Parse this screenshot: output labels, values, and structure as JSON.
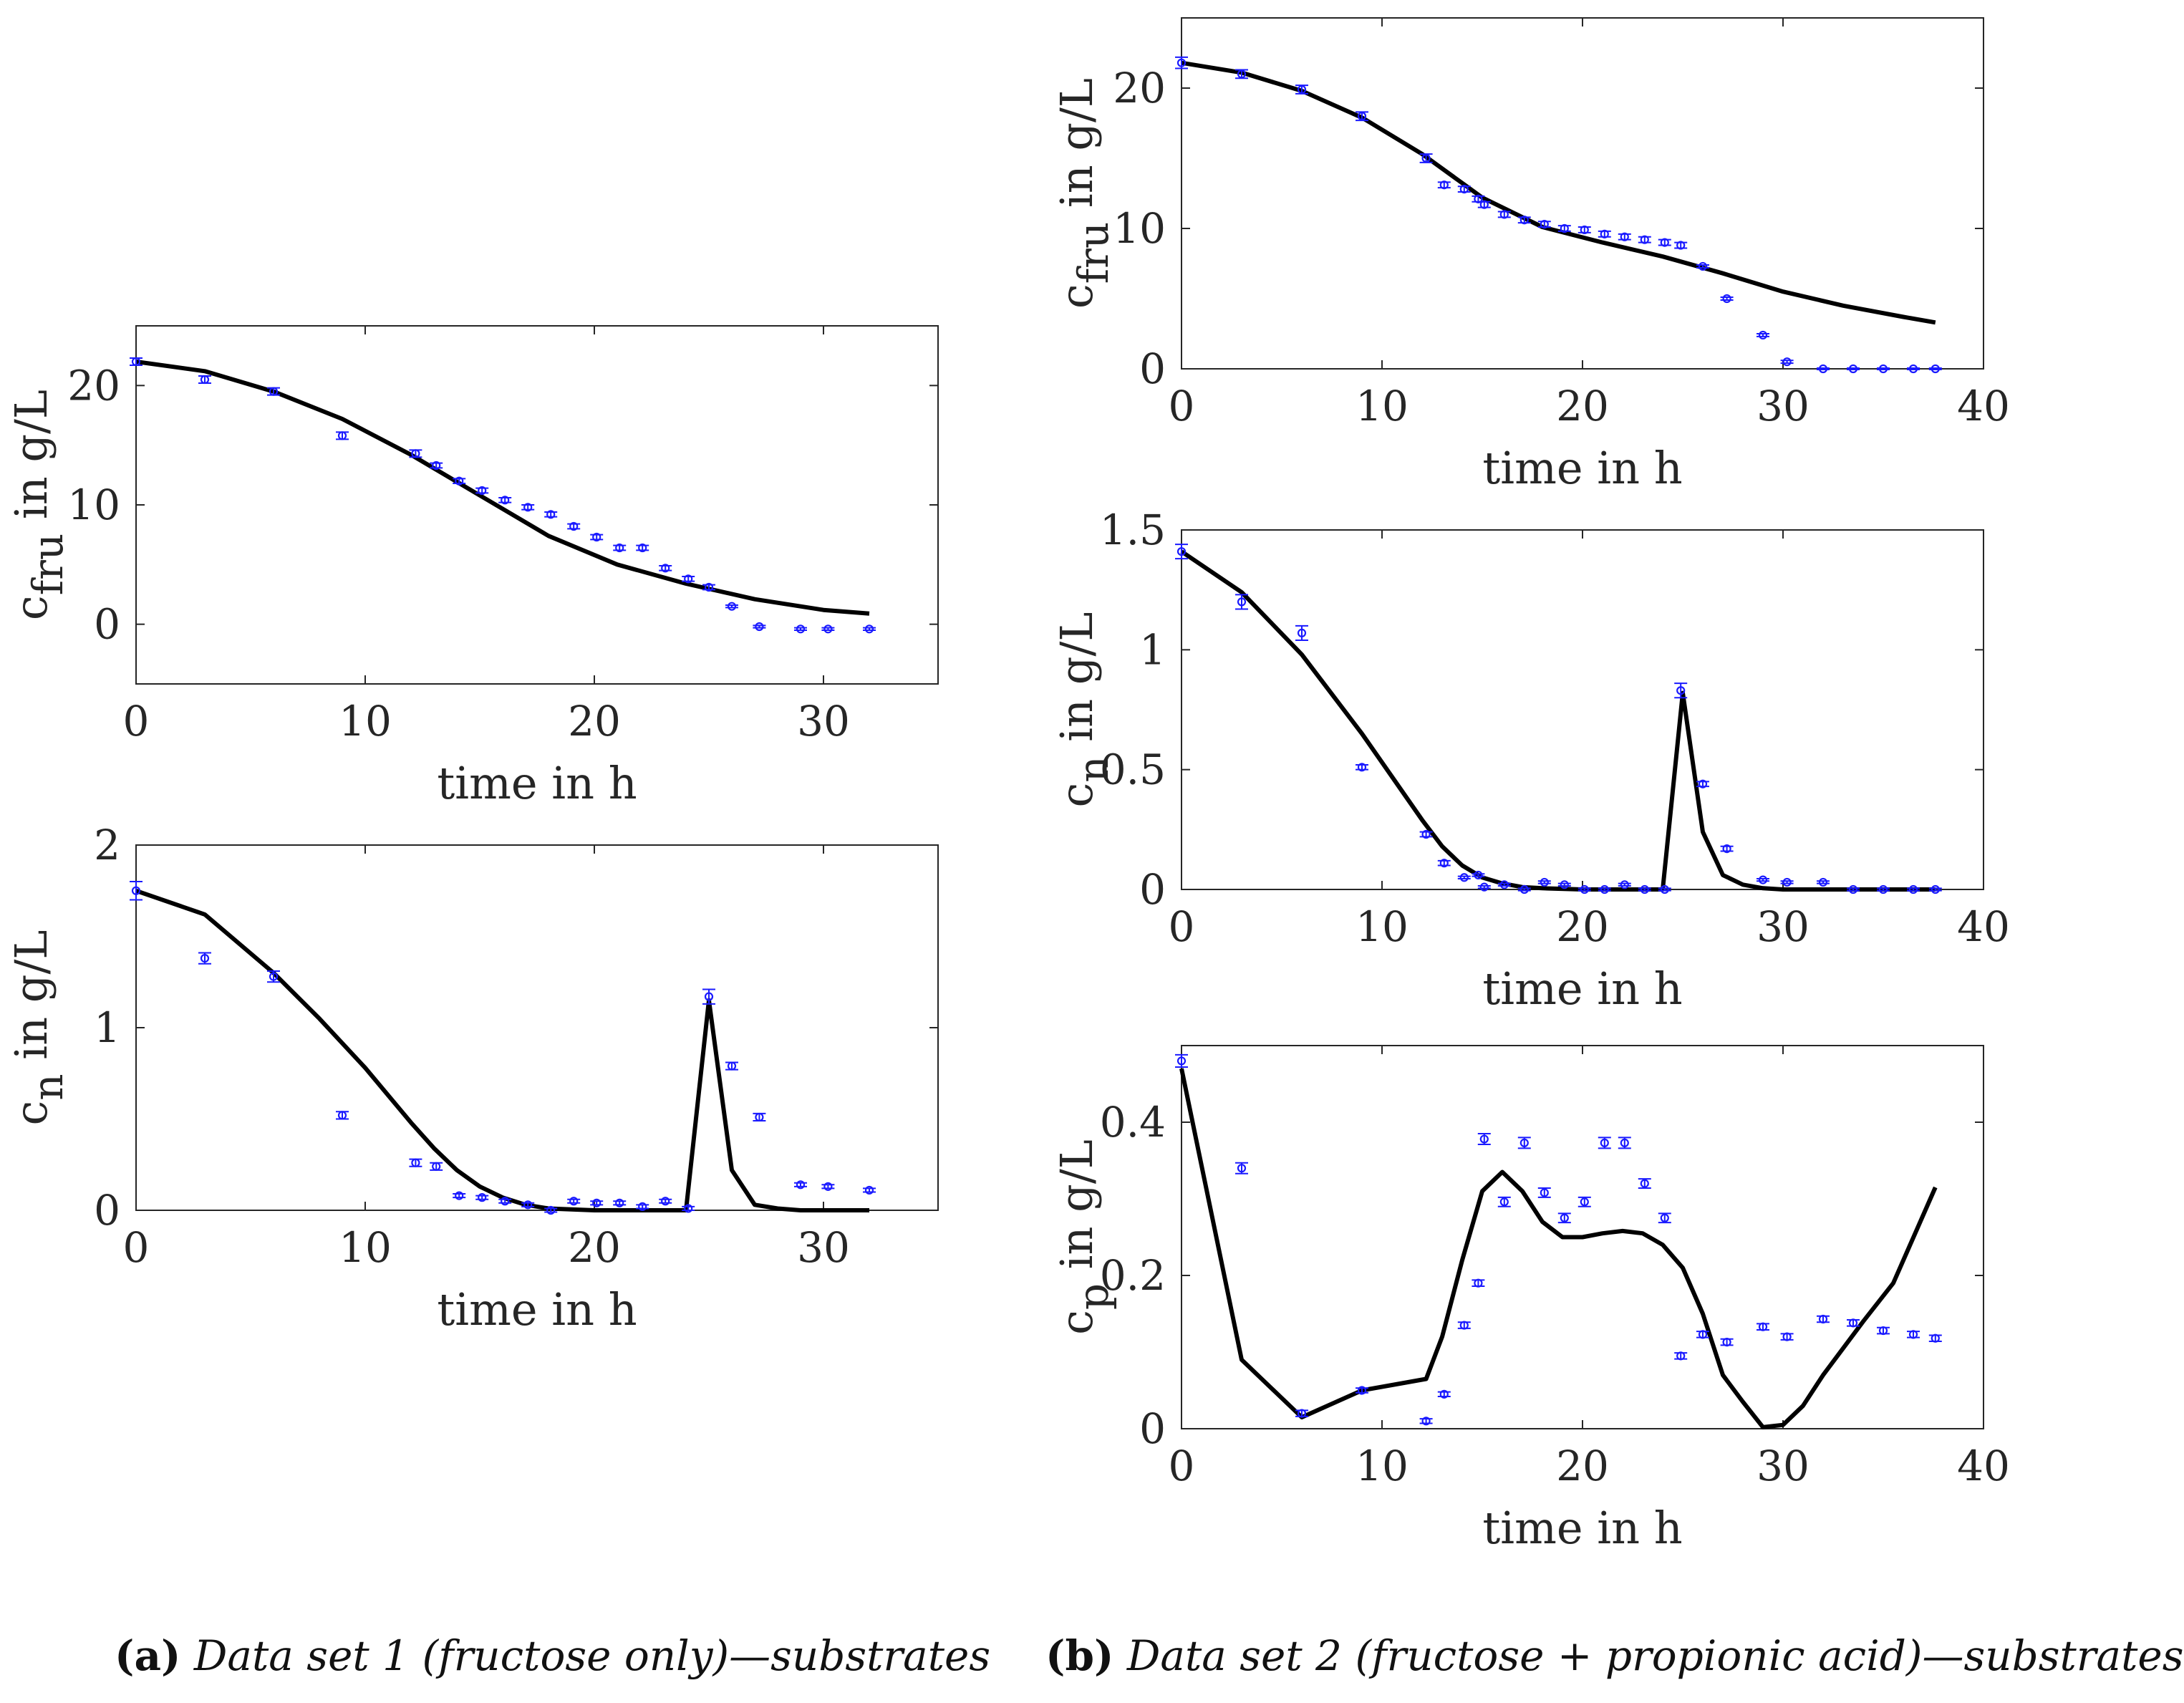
{
  "colors": {
    "model": "#000000",
    "measurement": "#1a1aff",
    "axis": "#262626"
  },
  "captions": {
    "a": {
      "label": "(a)",
      "text": "Data set 1 (fructose only)—substrates"
    },
    "b": {
      "label": "(b)",
      "text": "Data set 2 (fructose + propionic acid)—substrates"
    }
  },
  "chart_data": [
    {
      "id": "a1",
      "type": "line+errorbar",
      "xlabel": "time in h",
      "ylabel_main": "c",
      "ylabel_sub": "fru",
      "ylabel_rest": " in g/L",
      "xlim": [
        0,
        35
      ],
      "ylim": [
        -5,
        25
      ],
      "xticks": [
        0,
        10,
        20,
        30
      ],
      "yticks": [
        0,
        10,
        20
      ],
      "model": {
        "x": [
          0,
          3,
          6,
          9,
          12,
          15,
          18,
          21,
          24,
          27,
          30,
          32
        ],
        "y": [
          22,
          21.2,
          19.5,
          17.2,
          14.2,
          10.8,
          7.4,
          5.0,
          3.4,
          2.1,
          1.2,
          0.9
        ]
      },
      "measurements": {
        "x": [
          0,
          3,
          6,
          9,
          12.2,
          13.1,
          14.1,
          15.1,
          16.1,
          17.1,
          18.1,
          19.1,
          20.1,
          21.1,
          22.1,
          23.1,
          24.1,
          25,
          26,
          27.2,
          29,
          30.2,
          32
        ],
        "y": [
          22,
          20.5,
          19.5,
          15.8,
          14.3,
          13.3,
          12.0,
          11.2,
          10.4,
          9.8,
          9.2,
          8.2,
          7.3,
          6.4,
          6.4,
          4.7,
          3.8,
          3.1,
          1.5,
          -0.2,
          -0.4,
          -0.4,
          -0.4
        ],
        "err": [
          0.3,
          0.3,
          0.3,
          0.3,
          0.3,
          0.2,
          0.2,
          0.2,
          0.2,
          0.2,
          0.2,
          0.2,
          0.2,
          0.2,
          0.2,
          0.2,
          0.2,
          0.2,
          0.1,
          0.1,
          0.1,
          0.1,
          0.1
        ]
      }
    },
    {
      "id": "a2",
      "type": "line+errorbar",
      "xlabel": "time in h",
      "ylabel_main": "c",
      "ylabel_sub": "n",
      "ylabel_rest": " in g/L",
      "xlim": [
        0,
        35
      ],
      "ylim": [
        0,
        2
      ],
      "xticks": [
        0,
        10,
        20,
        30
      ],
      "yticks": [
        0,
        1,
        2
      ],
      "model": {
        "x": [
          0,
          3,
          6,
          8,
          10,
          12,
          13,
          14,
          15,
          16,
          17,
          18,
          20,
          22,
          24,
          25,
          26,
          27,
          28,
          29,
          30,
          32
        ],
        "y": [
          1.75,
          1.62,
          1.3,
          1.05,
          0.78,
          0.48,
          0.34,
          0.22,
          0.13,
          0.07,
          0.03,
          0.01,
          0,
          0,
          0,
          1.15,
          0.22,
          0.03,
          0.01,
          0,
          0,
          0
        ]
      },
      "measurements": {
        "x": [
          0,
          3,
          6,
          9,
          12.2,
          13.1,
          14.1,
          15.1,
          16.1,
          17.1,
          18.1,
          19.1,
          20.1,
          21.1,
          22.1,
          23.1,
          24.1,
          25,
          26,
          27.2,
          29,
          30.2,
          32
        ],
        "y": [
          1.75,
          1.38,
          1.28,
          0.52,
          0.26,
          0.24,
          0.08,
          0.07,
          0.05,
          0.03,
          0.0,
          0.05,
          0.04,
          0.04,
          0.02,
          0.05,
          0.01,
          1.17,
          0.79,
          0.51,
          0.14,
          0.13,
          0.11
        ],
        "err": [
          0.05,
          0.03,
          0.03,
          0.02,
          0.02,
          0.02,
          0.01,
          0.01,
          0.01,
          0.01,
          0.01,
          0.01,
          0.01,
          0.01,
          0.01,
          0.01,
          0.01,
          0.04,
          0.02,
          0.02,
          0.01,
          0.01,
          0.01
        ]
      }
    },
    {
      "id": "b1",
      "type": "line+errorbar",
      "xlabel": "time in h",
      "ylabel_main": "c",
      "ylabel_sub": "fru",
      "ylabel_rest": " in g/L",
      "xlim": [
        0,
        40
      ],
      "ylim": [
        0,
        25
      ],
      "xticks": [
        0,
        10,
        20,
        30,
        40
      ],
      "yticks": [
        0,
        10,
        20
      ],
      "model": {
        "x": [
          0,
          3,
          6,
          9,
          12,
          15,
          18,
          21,
          24,
          27,
          30,
          33,
          36,
          37.6
        ],
        "y": [
          21.8,
          21.1,
          19.8,
          17.9,
          15.3,
          12.2,
          10.1,
          9.0,
          8.0,
          6.8,
          5.5,
          4.5,
          3.7,
          3.3
        ]
      },
      "measurements": {
        "x": [
          0,
          3,
          6,
          9,
          12.2,
          13.1,
          14.1,
          14.8,
          15.1,
          16.1,
          17.1,
          18.1,
          19.1,
          20.1,
          21.1,
          22.1,
          23.1,
          24.1,
          24.9,
          26,
          27.2,
          29,
          30.2,
          32,
          33.5,
          35,
          36.5,
          37.6
        ],
        "y": [
          21.8,
          21.0,
          19.9,
          18.0,
          15.0,
          13.1,
          12.8,
          12.1,
          11.7,
          11.0,
          10.6,
          10.3,
          10.0,
          9.9,
          9.6,
          9.4,
          9.2,
          9.0,
          8.8,
          7.3,
          5.0,
          2.4,
          0.5,
          0,
          0,
          0,
          0,
          0
        ],
        "err": [
          0.4,
          0.3,
          0.3,
          0.3,
          0.3,
          0.2,
          0.2,
          0.2,
          0.2,
          0.2,
          0.2,
          0.2,
          0.2,
          0.2,
          0.2,
          0.2,
          0.2,
          0.2,
          0.2,
          0.1,
          0.1,
          0.1,
          0.1,
          0.05,
          0.05,
          0.05,
          0.05,
          0.05
        ]
      }
    },
    {
      "id": "b2",
      "type": "line+errorbar",
      "xlabel": "time in h",
      "ylabel_main": "c",
      "ylabel_sub": "n",
      "ylabel_rest": " in g/L",
      "xlim": [
        0,
        40
      ],
      "ylim": [
        0,
        1.5
      ],
      "xticks": [
        0,
        10,
        20,
        30,
        40
      ],
      "yticks": [
        0,
        0.5,
        1,
        1.5
      ],
      "ytick_labels": [
        "0",
        "0.5",
        "1",
        "1.5"
      ],
      "model": {
        "x": [
          0,
          3,
          6,
          9,
          12,
          13,
          14,
          15,
          16,
          17,
          18,
          20,
          22,
          24,
          25,
          26,
          27,
          28,
          29,
          30,
          32,
          34,
          36,
          37.6
        ],
        "y": [
          1.41,
          1.24,
          0.98,
          0.65,
          0.29,
          0.18,
          0.1,
          0.05,
          0.025,
          0.01,
          0.005,
          0,
          0,
          0,
          0.82,
          0.24,
          0.06,
          0.02,
          0.005,
          0,
          0,
          0,
          0,
          0
        ]
      },
      "measurements": {
        "x": [
          0,
          3,
          6,
          9,
          12.2,
          13.1,
          14.1,
          14.8,
          15.1,
          16.1,
          17.1,
          18.1,
          19.1,
          20.1,
          21.1,
          22.1,
          23.1,
          24.1,
          24.9,
          26,
          27.2,
          29,
          30.2,
          32,
          33.5,
          35,
          36.5,
          37.6
        ],
        "y": [
          1.41,
          1.2,
          1.07,
          0.51,
          0.23,
          0.11,
          0.05,
          0.06,
          0.01,
          0.02,
          0.0,
          0.03,
          0.02,
          0.0,
          0.0,
          0.02,
          0.0,
          0.0,
          0.83,
          0.44,
          0.17,
          0.04,
          0.03,
          0.03,
          0.0,
          0.0,
          0.0,
          0.0
        ],
        "err": [
          0.03,
          0.03,
          0.03,
          0.01,
          0.01,
          0.01,
          0.005,
          0.005,
          0.005,
          0.005,
          0.005,
          0.005,
          0.005,
          0.005,
          0.005,
          0.005,
          0.005,
          0.005,
          0.03,
          0.01,
          0.01,
          0.005,
          0.005,
          0.005,
          0.005,
          0.005,
          0.005,
          0.005
        ]
      }
    },
    {
      "id": "b3",
      "type": "line+errorbar",
      "xlabel": "time in h",
      "ylabel_main": "c",
      "ylabel_sub": "p",
      "ylabel_rest": " in g/L",
      "xlim": [
        0,
        40
      ],
      "ylim": [
        0,
        0.5
      ],
      "xticks": [
        0,
        10,
        20,
        30,
        40
      ],
      "yticks": [
        0,
        0.2,
        0.4
      ],
      "ytick_labels": [
        "0",
        "0.2",
        "0.4"
      ],
      "model": {
        "x": [
          0,
          3,
          6,
          9,
          12.2,
          13,
          14,
          15,
          16,
          17,
          18,
          19,
          20,
          21,
          22,
          23,
          24,
          25,
          26,
          27,
          28,
          29,
          30,
          31,
          32,
          34,
          35.5,
          37.6
        ],
        "y": [
          0.47,
          0.09,
          0.015,
          0.05,
          0.065,
          0.12,
          0.22,
          0.31,
          0.335,
          0.31,
          0.27,
          0.25,
          0.25,
          0.255,
          0.258,
          0.255,
          0.24,
          0.21,
          0.15,
          0.07,
          0.035,
          0.002,
          0.005,
          0.03,
          0.07,
          0.14,
          0.19,
          0.315
        ]
      },
      "measurements": {
        "x": [
          0,
          3,
          6,
          9,
          12.2,
          13.1,
          14.1,
          14.8,
          15.1,
          16.1,
          17.1,
          18.1,
          19.1,
          20.1,
          21.1,
          22.1,
          23.1,
          24.1,
          24.9,
          26,
          27.2,
          29,
          30.2,
          32,
          33.5,
          35,
          36.5,
          37.6
        ],
        "y": [
          0.48,
          0.34,
          0.02,
          0.05,
          0.01,
          0.045,
          0.135,
          0.19,
          0.378,
          0.296,
          0.373,
          0.308,
          0.275,
          0.296,
          0.373,
          0.373,
          0.32,
          0.275,
          0.095,
          0.123,
          0.113,
          0.133,
          0.12,
          0.143,
          0.138,
          0.128,
          0.123,
          0.118
        ],
        "err": [
          0.008,
          0.007,
          0.004,
          0.003,
          0.003,
          0.003,
          0.004,
          0.004,
          0.007,
          0.006,
          0.007,
          0.006,
          0.006,
          0.006,
          0.007,
          0.007,
          0.006,
          0.006,
          0.004,
          0.004,
          0.004,
          0.004,
          0.004,
          0.004,
          0.004,
          0.004,
          0.004,
          0.004
        ]
      }
    }
  ]
}
